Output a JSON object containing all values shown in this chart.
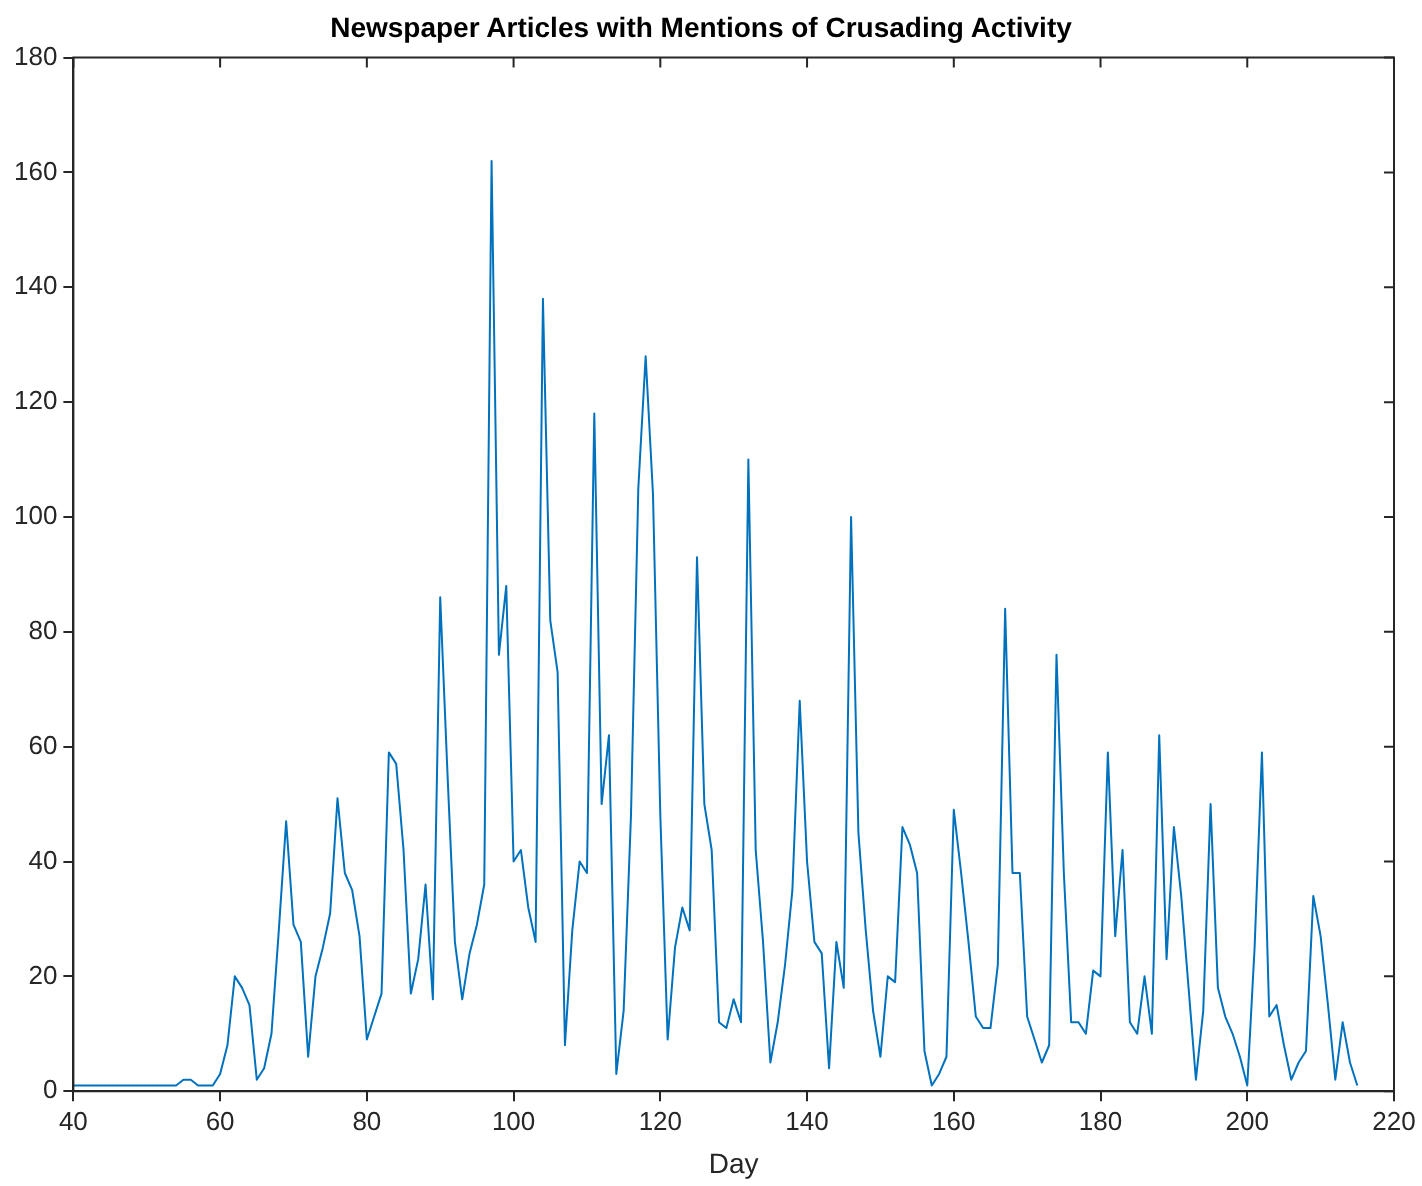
{
  "chart_data": {
    "type": "line",
    "title": "Newspaper Articles with Mentions of Crusading Activity",
    "xlabel": "Day",
    "xlim": [
      40,
      220
    ],
    "xticks": [
      40,
      60,
      80,
      100,
      120,
      140,
      160,
      180,
      200,
      220
    ],
    "ylim": [
      0,
      180
    ],
    "yticks": [
      0,
      20,
      40,
      60,
      80,
      100,
      120,
      140,
      160,
      180
    ],
    "grid": false,
    "legend": false,
    "marker": "none",
    "line_style": "solid",
    "x": [
      40,
      41,
      42,
      43,
      44,
      45,
      46,
      47,
      48,
      49,
      50,
      51,
      52,
      53,
      54,
      55,
      56,
      57,
      58,
      59,
      60,
      61,
      62,
      63,
      64,
      65,
      66,
      67,
      68,
      69,
      70,
      71,
      72,
      73,
      74,
      75,
      76,
      77,
      78,
      79,
      80,
      81,
      82,
      83,
      84,
      85,
      86,
      87,
      88,
      89,
      90,
      91,
      92,
      93,
      94,
      95,
      96,
      97,
      98,
      99,
      100,
      101,
      102,
      103,
      104,
      105,
      106,
      107,
      108,
      109,
      110,
      111,
      112,
      113,
      114,
      115,
      116,
      117,
      118,
      119,
      120,
      121,
      122,
      123,
      124,
      125,
      126,
      127,
      128,
      129,
      130,
      131,
      132,
      133,
      134,
      135,
      136,
      137,
      138,
      139,
      140,
      141,
      142,
      143,
      144,
      145,
      146,
      147,
      148,
      149,
      150,
      151,
      152,
      153,
      154,
      155,
      156,
      157,
      158,
      159,
      160,
      161,
      162,
      163,
      164,
      165,
      166,
      167,
      168,
      169,
      170,
      171,
      172,
      173,
      174,
      175,
      176,
      177,
      178,
      179,
      180,
      181,
      182,
      183,
      184,
      185,
      186,
      187,
      188,
      189,
      190,
      191,
      192,
      193,
      194,
      195,
      196,
      197,
      198,
      199,
      200,
      201,
      202,
      203,
      204,
      205,
      206,
      207,
      208,
      209,
      210,
      211,
      212,
      213,
      214,
      215
    ],
    "series": [
      {
        "color": "#0072bd",
        "values": [
          1,
          1,
          1,
          1,
          1,
          1,
          1,
          1,
          1,
          1,
          1,
          1,
          1,
          1,
          1,
          2,
          2,
          1,
          1,
          1,
          3,
          8,
          20,
          18,
          15,
          2,
          4,
          10,
          28,
          47,
          29,
          26,
          6,
          20,
          25,
          31,
          51,
          38,
          35,
          27,
          9,
          13,
          17,
          59,
          57,
          42,
          17,
          23,
          36,
          16,
          86,
          55,
          26,
          16,
          24,
          29,
          36,
          162,
          76,
          88,
          40,
          42,
          32,
          26,
          138,
          82,
          73,
          8,
          28,
          40,
          38,
          118,
          50,
          62,
          3,
          14,
          48,
          105,
          128,
          104,
          48,
          9,
          25,
          32,
          28,
          93,
          50,
          42,
          12,
          11,
          16,
          12,
          110,
          42,
          26,
          5,
          12,
          22,
          35,
          68,
          40,
          26,
          24,
          4,
          26,
          18,
          100,
          45,
          28,
          14,
          6,
          20,
          19,
          46,
          43,
          38,
          7,
          1,
          3,
          6,
          49,
          38,
          26,
          13,
          11,
          11,
          22,
          84,
          38,
          38,
          13,
          9,
          5,
          8,
          76,
          38,
          12,
          12,
          10,
          21,
          20,
          59,
          27,
          42,
          12,
          10,
          20,
          10,
          62,
          23,
          46,
          34,
          18,
          2,
          14,
          50,
          18,
          13,
          10,
          6,
          1,
          25,
          59,
          13,
          15,
          8,
          2,
          5,
          7,
          34,
          27,
          15,
          2,
          12,
          5,
          1
        ]
      }
    ]
  }
}
